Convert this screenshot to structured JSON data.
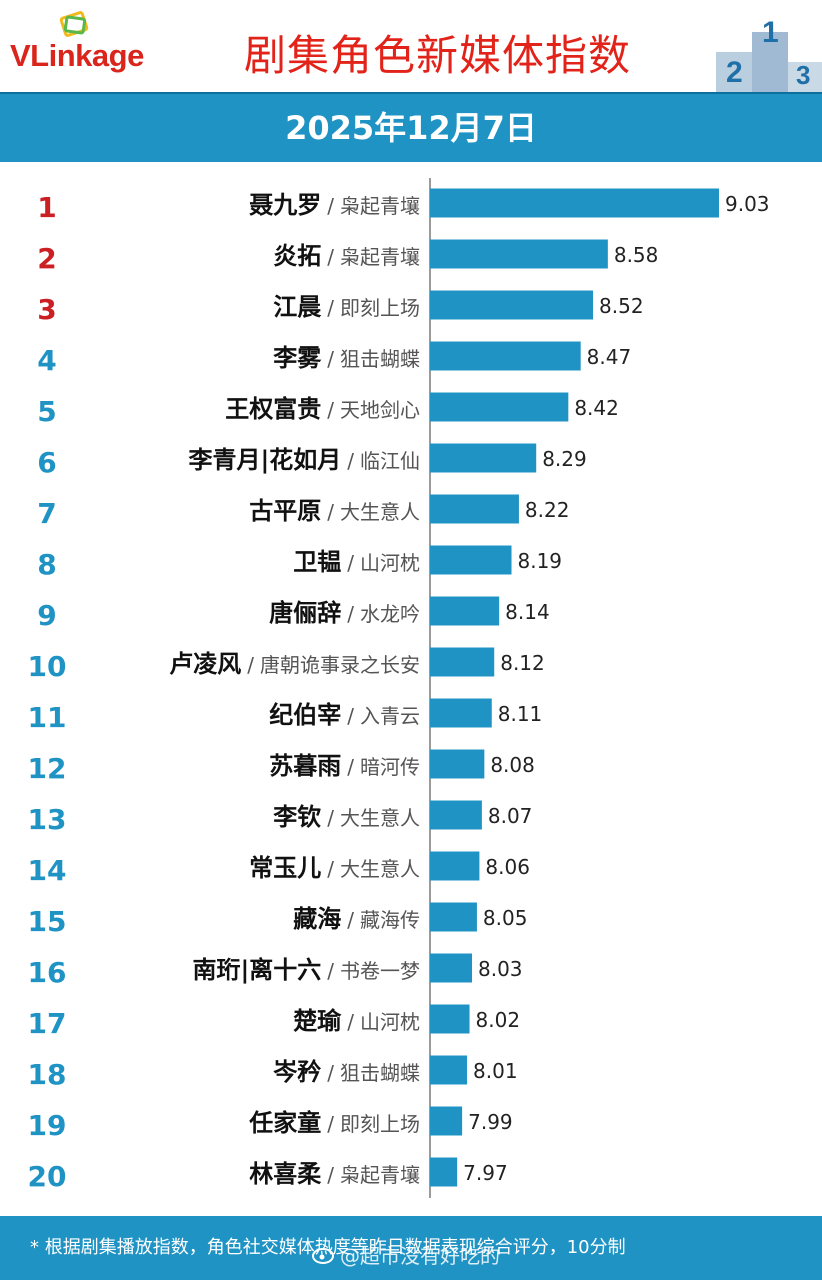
{
  "header": {
    "logo_text": "VLinkage",
    "title": "剧集角色新媒体指数",
    "date": "2025年12月7日"
  },
  "colors": {
    "bar": "#1f93c4",
    "rank_top3": "#cc1f24",
    "rank_rest": "#1f93c4",
    "title_red": "#e2231a"
  },
  "chart_data": {
    "type": "bar",
    "orientation": "horizontal",
    "title": "剧集角色新媒体指数",
    "xlabel": "",
    "ylabel": "",
    "ranks": [
      "1",
      "2",
      "3",
      "4",
      "5",
      "6",
      "7",
      "8",
      "9",
      "10",
      "11",
      "12",
      "13",
      "14",
      "15",
      "16",
      "17",
      "18",
      "19",
      "20"
    ],
    "characters": [
      "聂九罗",
      "炎拓",
      "江晨",
      "李雾",
      "王权富贵",
      "李青月|花如月",
      "古平原",
      "卫韫",
      "唐俪辞",
      "卢凌风",
      "纪伯宰",
      "苏暮雨",
      "李钦",
      "常玉儿",
      "藏海",
      "南珩|离十六",
      "楚瑜",
      "岑矜",
      "任家童",
      "林喜柔"
    ],
    "dramas": [
      "枭起青壤",
      "枭起青壤",
      "即刻上场",
      "狙击蝴蝶",
      "天地剑心",
      "临江仙",
      "大生意人",
      "山河枕",
      "水龙吟",
      "唐朝诡事录之长安",
      "入青云",
      "暗河传",
      "大生意人",
      "大生意人",
      "藏海传",
      "书卷一梦",
      "山河枕",
      "狙击蝴蝶",
      "即刻上场",
      "枭起青壤"
    ],
    "values": [
      9.03,
      8.58,
      8.52,
      8.47,
      8.42,
      8.29,
      8.22,
      8.19,
      8.14,
      8.12,
      8.11,
      8.08,
      8.07,
      8.06,
      8.05,
      8.03,
      8.02,
      8.01,
      7.99,
      7.97
    ],
    "value_labels": [
      "9.03",
      "8.58",
      "8.52",
      "8.47",
      "8.42",
      "8.29",
      "8.22",
      "8.19",
      "8.14",
      "8.12",
      "8.11",
      "8.08",
      "8.07",
      "8.06",
      "8.05",
      "8.03",
      "8.02",
      "8.01",
      "7.99",
      "7.97"
    ],
    "xlim": [
      7.86,
      9.03
    ]
  },
  "footer": {
    "note": "* 根据剧集播放指数，角色社交媒体热度等昨日数据表现综合评分，10分制",
    "watermark": "@超市没有好吃的"
  }
}
